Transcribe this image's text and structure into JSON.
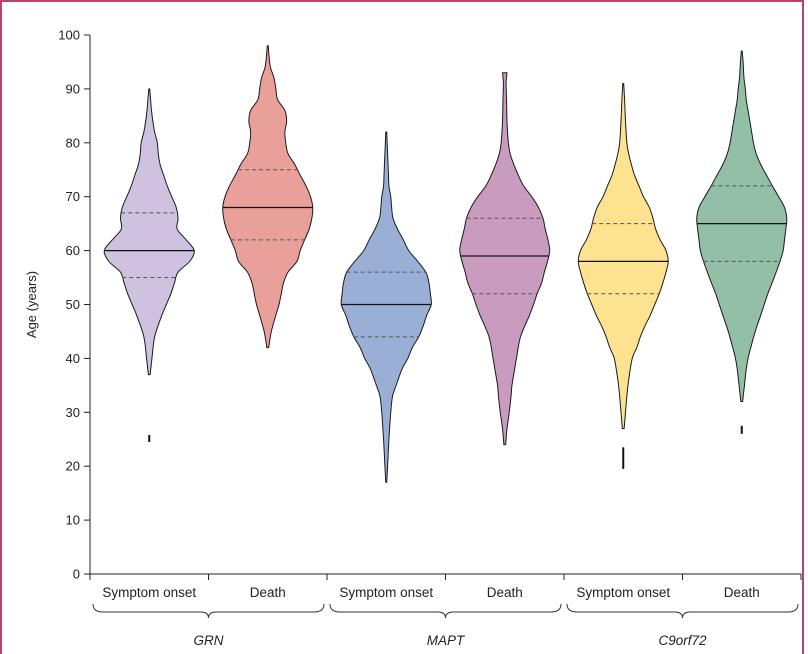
{
  "chart_data": {
    "type": "violin",
    "ylabel": "Age (years)",
    "ylim": [
      0,
      100
    ],
    "yticks": [
      0,
      10,
      20,
      30,
      40,
      50,
      60,
      70,
      80,
      90,
      100
    ],
    "grid": false,
    "categories": [
      "Symptom onset",
      "Death",
      "Symptom onset",
      "Death",
      "Symptom onset",
      "Death"
    ],
    "groups": [
      "GRN",
      "MAPT",
      "C9orf72"
    ],
    "violins": [
      {
        "gene": "GRN",
        "event": "Symptom onset",
        "color": "#cfc2e0",
        "median": 60,
        "q1": 55,
        "q3": 67,
        "min": 37,
        "max": 90,
        "outliers": [
          [
            24.5,
            25.8
          ]
        ],
        "profile": [
          [
            37,
            0.02
          ],
          [
            40,
            0.06
          ],
          [
            44,
            0.12
          ],
          [
            48,
            0.28
          ],
          [
            50,
            0.38
          ],
          [
            52,
            0.48
          ],
          [
            54,
            0.56
          ],
          [
            56,
            0.64
          ],
          [
            58,
            0.9
          ],
          [
            60,
            1.0
          ],
          [
            62,
            0.82
          ],
          [
            64,
            0.62
          ],
          [
            66,
            0.64
          ],
          [
            68,
            0.6
          ],
          [
            70,
            0.5
          ],
          [
            72,
            0.4
          ],
          [
            74,
            0.32
          ],
          [
            76,
            0.24
          ],
          [
            78,
            0.2
          ],
          [
            80,
            0.18
          ],
          [
            82,
            0.12
          ],
          [
            84,
            0.08
          ],
          [
            86,
            0.05
          ],
          [
            88,
            0.03
          ],
          [
            90,
            0.01
          ]
        ]
      },
      {
        "gene": "GRN",
        "event": "Death",
        "color": "#e9a09a",
        "median": 68,
        "q1": 62,
        "q3": 75,
        "min": 42,
        "max": 98,
        "outliers": [],
        "profile": [
          [
            42,
            0.02
          ],
          [
            45,
            0.08
          ],
          [
            48,
            0.18
          ],
          [
            50,
            0.25
          ],
          [
            52,
            0.3
          ],
          [
            54,
            0.35
          ],
          [
            56,
            0.45
          ],
          [
            58,
            0.65
          ],
          [
            60,
            0.72
          ],
          [
            62,
            0.82
          ],
          [
            64,
            0.92
          ],
          [
            66,
            0.98
          ],
          [
            68,
            1.0
          ],
          [
            70,
            0.95
          ],
          [
            72,
            0.85
          ],
          [
            74,
            0.72
          ],
          [
            76,
            0.6
          ],
          [
            78,
            0.45
          ],
          [
            80,
            0.4
          ],
          [
            82,
            0.38
          ],
          [
            84,
            0.42
          ],
          [
            86,
            0.38
          ],
          [
            88,
            0.22
          ],
          [
            90,
            0.18
          ],
          [
            92,
            0.14
          ],
          [
            94,
            0.06
          ],
          [
            96,
            0.03
          ],
          [
            98,
            0.01
          ]
        ]
      },
      {
        "gene": "MAPT",
        "event": "Symptom onset",
        "color": "#9aafd6",
        "median": 50,
        "q1": 44,
        "q3": 56,
        "min": 17,
        "max": 82,
        "outliers": [],
        "profile": [
          [
            17,
            0.01
          ],
          [
            20,
            0.03
          ],
          [
            25,
            0.06
          ],
          [
            30,
            0.1
          ],
          [
            33,
            0.14
          ],
          [
            35,
            0.22
          ],
          [
            38,
            0.35
          ],
          [
            40,
            0.48
          ],
          [
            42,
            0.58
          ],
          [
            44,
            0.72
          ],
          [
            46,
            0.82
          ],
          [
            48,
            0.9
          ],
          [
            50,
            1.0
          ],
          [
            52,
            0.98
          ],
          [
            54,
            0.95
          ],
          [
            56,
            0.88
          ],
          [
            58,
            0.7
          ],
          [
            60,
            0.5
          ],
          [
            62,
            0.38
          ],
          [
            64,
            0.25
          ],
          [
            66,
            0.15
          ],
          [
            68,
            0.12
          ],
          [
            70,
            0.1
          ],
          [
            72,
            0.06
          ],
          [
            74,
            0.05
          ],
          [
            76,
            0.04
          ],
          [
            78,
            0.03
          ],
          [
            82,
            0.01
          ]
        ]
      },
      {
        "gene": "MAPT",
        "event": "Death",
        "color": "#c89bbf",
        "median": 59,
        "q1": 52,
        "q3": 66,
        "min": 24,
        "max": 93,
        "outliers": [],
        "profile": [
          [
            24,
            0.02
          ],
          [
            27,
            0.05
          ],
          [
            30,
            0.1
          ],
          [
            33,
            0.14
          ],
          [
            35,
            0.16
          ],
          [
            38,
            0.22
          ],
          [
            40,
            0.26
          ],
          [
            44,
            0.35
          ],
          [
            48,
            0.55
          ],
          [
            50,
            0.64
          ],
          [
            52,
            0.72
          ],
          [
            54,
            0.82
          ],
          [
            56,
            0.88
          ],
          [
            58,
            0.95
          ],
          [
            60,
            1.0
          ],
          [
            62,
            0.96
          ],
          [
            64,
            0.9
          ],
          [
            66,
            0.85
          ],
          [
            68,
            0.75
          ],
          [
            70,
            0.6
          ],
          [
            72,
            0.42
          ],
          [
            74,
            0.3
          ],
          [
            76,
            0.2
          ],
          [
            78,
            0.12
          ],
          [
            80,
            0.08
          ],
          [
            84,
            0.05
          ],
          [
            88,
            0.04
          ],
          [
            91,
            0.03
          ],
          [
            93,
            0.05
          ]
        ]
      },
      {
        "gene": "C9orf72",
        "event": "Symptom onset",
        "color": "#fde28f",
        "median": 58,
        "q1": 52,
        "q3": 65,
        "min": 27,
        "max": 91,
        "outliers": [
          [
            19.5,
            23.5
          ]
        ],
        "profile": [
          [
            27,
            0.02
          ],
          [
            30,
            0.05
          ],
          [
            33,
            0.08
          ],
          [
            36,
            0.12
          ],
          [
            40,
            0.2
          ],
          [
            42,
            0.3
          ],
          [
            44,
            0.38
          ],
          [
            46,
            0.48
          ],
          [
            48,
            0.6
          ],
          [
            50,
            0.7
          ],
          [
            52,
            0.8
          ],
          [
            54,
            0.88
          ],
          [
            56,
            0.95
          ],
          [
            58,
            1.0
          ],
          [
            60,
            0.95
          ],
          [
            62,
            0.82
          ],
          [
            64,
            0.72
          ],
          [
            66,
            0.66
          ],
          [
            68,
            0.58
          ],
          [
            70,
            0.45
          ],
          [
            72,
            0.35
          ],
          [
            74,
            0.25
          ],
          [
            76,
            0.18
          ],
          [
            78,
            0.12
          ],
          [
            80,
            0.08
          ],
          [
            84,
            0.05
          ],
          [
            88,
            0.03
          ],
          [
            91,
            0.01
          ]
        ]
      },
      {
        "gene": "C9orf72",
        "event": "Death",
        "color": "#92bfa5",
        "median": 65,
        "q1": 58,
        "q3": 72,
        "min": 32,
        "max": 97,
        "outliers": [
          [
            26,
            27.5
          ]
        ],
        "profile": [
          [
            32,
            0.02
          ],
          [
            35,
            0.06
          ],
          [
            38,
            0.1
          ],
          [
            40,
            0.14
          ],
          [
            42,
            0.2
          ],
          [
            45,
            0.3
          ],
          [
            48,
            0.42
          ],
          [
            50,
            0.5
          ],
          [
            52,
            0.58
          ],
          [
            55,
            0.72
          ],
          [
            58,
            0.85
          ],
          [
            60,
            0.92
          ],
          [
            62,
            0.95
          ],
          [
            64,
            0.98
          ],
          [
            66,
            1.0
          ],
          [
            68,
            0.95
          ],
          [
            70,
            0.82
          ],
          [
            72,
            0.68
          ],
          [
            74,
            0.55
          ],
          [
            76,
            0.42
          ],
          [
            78,
            0.32
          ],
          [
            80,
            0.26
          ],
          [
            82,
            0.22
          ],
          [
            84,
            0.18
          ],
          [
            86,
            0.14
          ],
          [
            88,
            0.1
          ],
          [
            90,
            0.08
          ],
          [
            92,
            0.05
          ],
          [
            95,
            0.03
          ],
          [
            97,
            0.01
          ]
        ]
      }
    ]
  }
}
